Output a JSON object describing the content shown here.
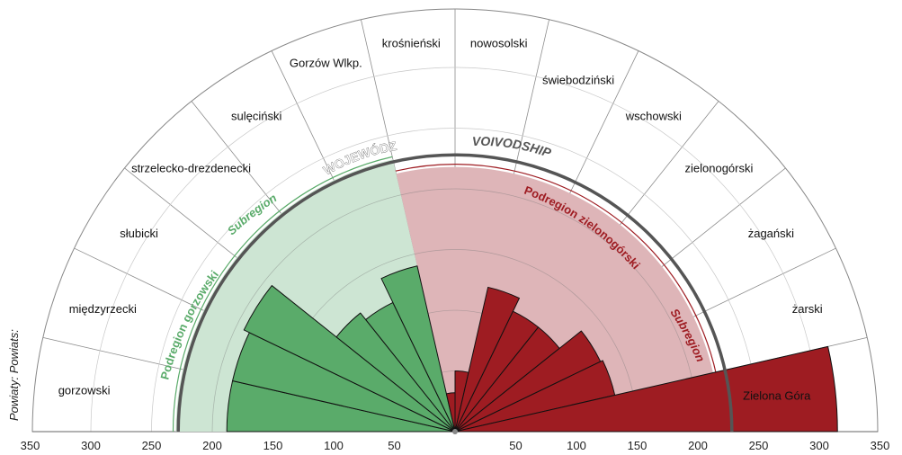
{
  "chart_data": {
    "type": "polar-bar",
    "axis": {
      "side_label": "Powiaty: Powiats:",
      "ticks_left": [
        "350",
        "300",
        "250",
        "200",
        "150",
        "100",
        "50"
      ],
      "ticks_right": [
        "50",
        "100",
        "150",
        "200",
        "250",
        "300",
        "350"
      ],
      "tick_values": [
        50,
        100,
        150,
        200,
        250,
        300,
        350
      ],
      "rmax": 350
    },
    "arc_labels": {
      "voivodeship_pl": "WOJEWÓDZTWO",
      "voivodeship_en": "VOIVODSHIP",
      "gorzow_pl": "Podregion gorzowski",
      "gorzow_en": "Subregion",
      "zielona_pl": "Podregion zielonogórski",
      "zielona_en": "Subregion"
    },
    "reference_values": {
      "voivodeship": 228,
      "gorzow_subregion": 230,
      "zielona_subregion": 218
    },
    "colors": {
      "gorzow": "#5aab6a",
      "gorzow_light": "#cde5d3",
      "zielona": "#9e1c22",
      "zielona_light": "#deb5b8",
      "ring": "#555555"
    },
    "categories": [
      "gorzowski",
      "międzyrzecki",
      "słubicki",
      "strzelecko-drezdenecki",
      "sulęciński",
      "Gorzów Wlkp.",
      "krośnieński",
      "nowosolski",
      "świebodziński",
      "wschowski",
      "zielonogórski",
      "żagański",
      "żarski",
      "Zielona Góra"
    ],
    "groups": [
      "gorzow",
      "gorzow",
      "gorzow",
      "gorzow",
      "gorzow",
      "gorzow",
      "zielona",
      "zielona",
      "zielona",
      "zielona",
      "zielona",
      "zielona",
      "zielona",
      "zielona"
    ],
    "values": [
      188,
      188,
      193,
      125,
      118,
      140,
      32,
      50,
      122,
      110,
      110,
      133,
      135,
      315
    ]
  }
}
